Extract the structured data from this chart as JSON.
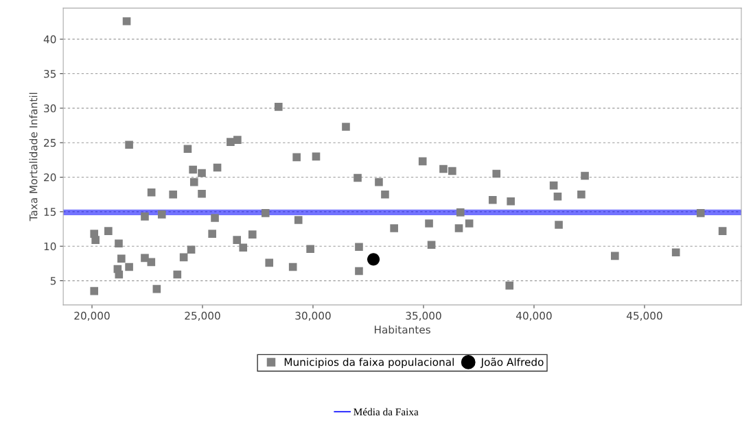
{
  "chart_data": {
    "type": "scatter",
    "xlabel": "Habitantes",
    "ylabel": "Taxa Mortalidade Infantil",
    "xlim": [
      18700,
      49380
    ],
    "ylim": [
      1.5,
      44.5
    ],
    "xticks": [
      {
        "value": 20000,
        "label": "20,000"
      },
      {
        "value": 25000,
        "label": "25,000"
      },
      {
        "value": 30000,
        "label": "30,000"
      },
      {
        "value": 35000,
        "label": "35,000"
      },
      {
        "value": 40000,
        "label": "40,000"
      },
      {
        "value": 45000,
        "label": "45,000"
      }
    ],
    "yticks": [
      5,
      10,
      15,
      20,
      25,
      30,
      35,
      40
    ],
    "grid": "y",
    "legend": "bottom",
    "series": [
      {
        "name": "Municipios da faixa populacional",
        "color": "#808080",
        "marker": "square",
        "x": [
          21570,
          28440,
          21680,
          24330,
          26270,
          26580,
          29260,
          24570,
          24970,
          25670,
          24620,
          22690,
          23670,
          24970,
          22390,
          23160,
          25560,
          27850,
          29340,
          20100,
          20160,
          20740,
          21210,
          25440,
          27260,
          26560,
          26840,
          24490,
          24150,
          22390,
          22680,
          21330,
          21680,
          21160,
          21220,
          23860,
          28020,
          29090,
          20100,
          22930,
          31490,
          30140,
          34960,
          35900,
          36300,
          38300,
          32020,
          32980,
          33260,
          38130,
          38950,
          36670,
          35250,
          37070,
          33670,
          36600,
          29880,
          32080,
          35360,
          32080,
          38890,
          42300,
          40890,
          41070,
          42140,
          41120,
          47540,
          48530,
          43660,
          46420
        ],
        "values": [
          42.6,
          30.2,
          24.7,
          24.1,
          25.1,
          25.4,
          22.9,
          21.1,
          20.6,
          21.4,
          19.3,
          17.8,
          17.5,
          17.6,
          14.3,
          14.6,
          14.1,
          14.8,
          13.8,
          11.8,
          10.9,
          12.2,
          10.4,
          11.8,
          11.7,
          10.9,
          9.8,
          9.5,
          8.4,
          8.3,
          7.7,
          8.2,
          7.0,
          6.7,
          5.9,
          5.9,
          7.6,
          7.0,
          3.5,
          3.8,
          27.3,
          23.0,
          22.3,
          21.2,
          20.9,
          20.5,
          19.9,
          19.3,
          17.5,
          16.7,
          16.5,
          14.9,
          13.3,
          13.3,
          12.6,
          12.6,
          9.6,
          9.9,
          10.2,
          6.4,
          4.3,
          20.2,
          18.8,
          17.2,
          17.5,
          13.1,
          14.8,
          12.2,
          8.6,
          9.1
        ]
      },
      {
        "name": "João Alfredo",
        "color": "#000000",
        "marker": "circle",
        "x": [
          32735
        ],
        "values": [
          8.1
        ]
      }
    ],
    "ref_lines": [
      {
        "axis": "y",
        "value": 14.9,
        "label": "Média da Faixa",
        "color": "#0000ff"
      }
    ]
  }
}
